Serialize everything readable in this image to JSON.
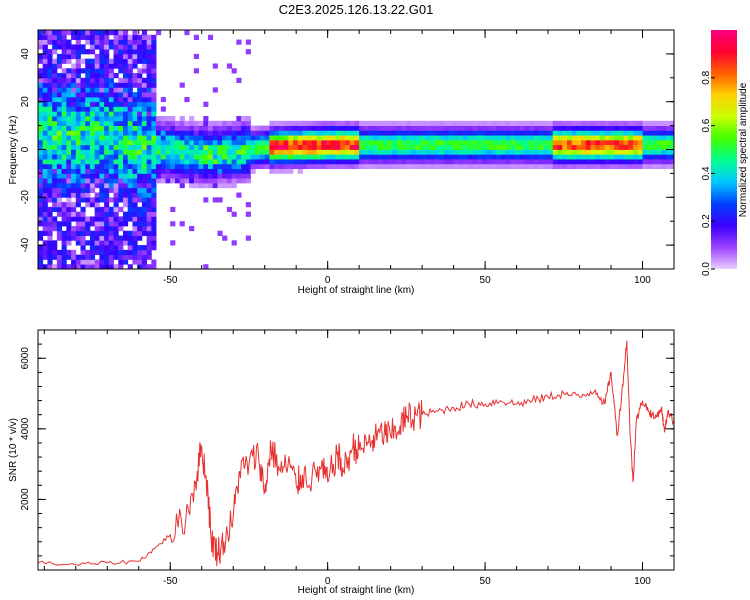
{
  "title": "C2E3.2025.126.13.22.G01",
  "chart_data": [
    {
      "type": "heatmap",
      "xlabel": "Height of straight line (km)",
      "ylabel": "Frequency (Hz)",
      "xlim": [
        -92,
        110
      ],
      "ylim": [
        -50,
        50
      ],
      "xticks": [
        -50,
        0,
        50,
        100
      ],
      "yticks": [
        -40,
        -20,
        0,
        20,
        40
      ],
      "colorbar": {
        "label": "Normalized spectral amplitude",
        "range": [
          0.0,
          1.0
        ],
        "ticks": [
          "0.0",
          "0.2",
          "0.4",
          "0.6",
          "0.8"
        ],
        "colormap": [
          "#e8d0ff",
          "#9c40ff",
          "#3a00ff",
          "#0040ff",
          "#00c8ff",
          "#00ff90",
          "#40ff00",
          "#c8ff00",
          "#ffd000",
          "#ff6000",
          "#ff0030",
          "#ff0080"
        ]
      },
      "grid": false,
      "ridge_line": [
        {
          "x": -70,
          "f": 5
        },
        {
          "x": -60,
          "f": 0
        },
        {
          "x": -40,
          "f": -3
        },
        {
          "x": -30,
          "f": -2
        },
        {
          "x": -20,
          "f": 0
        },
        {
          "x": 0,
          "f": 1
        },
        {
          "x": 50,
          "f": 1
        },
        {
          "x": 100,
          "f": 1
        },
        {
          "x": 110,
          "f": 1
        }
      ]
    },
    {
      "type": "line",
      "xlabel": "Height of straight line (km)",
      "ylabel": "SNR (10 * v/v)",
      "xlim": [
        -92,
        110
      ],
      "ylim": [
        0,
        6800
      ],
      "xticks": [
        -50,
        0,
        50,
        100
      ],
      "yticks": [
        2000,
        4000,
        6000
      ],
      "grid": false,
      "series": [
        {
          "color": "#e83030",
          "x": [
            -92,
            -80,
            -70,
            -60,
            -55,
            -50,
            -45,
            -42,
            -40,
            -38,
            -37,
            -35,
            -33,
            -30,
            -28,
            -25,
            -22,
            -20,
            -18,
            -15,
            -12,
            -10,
            -8,
            -5,
            -2,
            0,
            3,
            5,
            8,
            10,
            13,
            15,
            18,
            20,
            23,
            25,
            28,
            30,
            35,
            40,
            45,
            50,
            55,
            60,
            65,
            70,
            75,
            80,
            85,
            88,
            90,
            92,
            94,
            95,
            96,
            97,
            98,
            100,
            102,
            104,
            106,
            107,
            108,
            110
          ],
          "y": [
            200,
            150,
            200,
            250,
            600,
            1000,
            1500,
            2500,
            3500,
            2200,
            900,
            500,
            800,
            1500,
            2800,
            3000,
            3300,
            2200,
            3500,
            2800,
            3000,
            2400,
            2700,
            2600,
            2900,
            2500,
            3300,
            2800,
            3500,
            3400,
            3600,
            3700,
            3900,
            3800,
            4100,
            4300,
            4400,
            4400,
            4500,
            4600,
            4700,
            4700,
            4800,
            4700,
            4800,
            4900,
            5000,
            4900,
            5100,
            4700,
            5600,
            3800,
            5500,
            6500,
            4000,
            2500,
            4200,
            4800,
            4500,
            4300,
            4600,
            3900,
            4500,
            4200
          ]
        }
      ]
    }
  ]
}
